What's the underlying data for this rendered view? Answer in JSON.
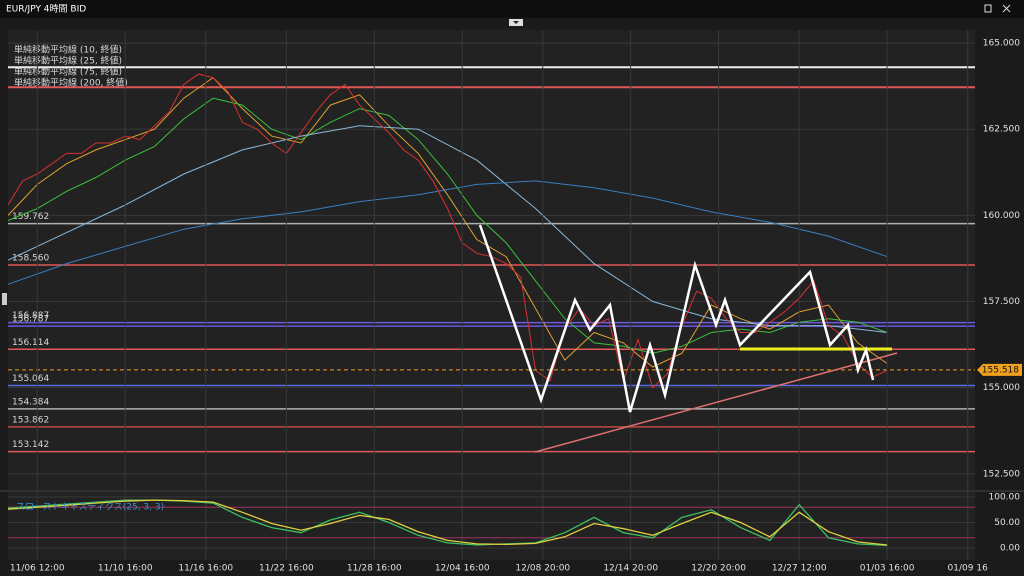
{
  "chart_data": [
    {
      "type": "line",
      "title": "EUR/JPY 4時間 BID",
      "xlim": [
        0,
        132
      ],
      "ylim": [
        152.03,
        165.38
      ],
      "yticks": [
        {
          "value": 152.5,
          "label": "152.500"
        },
        {
          "value": 155,
          "label": "155.000"
        },
        {
          "value": 157.5,
          "label": "157.500"
        },
        {
          "value": 160,
          "label": "160.000"
        },
        {
          "value": 162.5,
          "label": "162.500"
        },
        {
          "value": 165,
          "label": "165.000"
        }
      ],
      "grid": true,
      "series": [
        {
          "name": "単純移動平均線 (10, 終値)",
          "color": "#e0a030",
          "x": [
            0,
            4,
            8,
            12,
            16,
            20,
            24,
            28,
            32,
            36,
            40,
            44,
            48,
            52,
            56,
            60,
            64,
            68,
            72,
            76,
            80,
            84,
            88,
            92,
            96,
            100,
            104,
            108,
            112,
            116,
            120
          ],
          "values": [
            160.0,
            160.9,
            161.5,
            161.9,
            162.2,
            162.5,
            163.4,
            164.0,
            163.1,
            162.3,
            162.1,
            163.2,
            163.5,
            162.6,
            161.8,
            160.6,
            159.3,
            158.8,
            157.3,
            155.8,
            156.6,
            156.3,
            155.6,
            156.0,
            157.4,
            157.0,
            156.7,
            157.2,
            157.4,
            156.3,
            155.7
          ]
        },
        {
          "name": "単純移動平均線 (25, 終値)",
          "color": "#3cc03c",
          "x": [
            0,
            4,
            8,
            12,
            16,
            20,
            24,
            28,
            32,
            36,
            40,
            44,
            48,
            52,
            56,
            60,
            64,
            68,
            72,
            76,
            80,
            84,
            88,
            92,
            96,
            100,
            104,
            108,
            112,
            116,
            120
          ],
          "values": [
            159.85,
            160.2,
            160.7,
            161.1,
            161.6,
            162.0,
            162.8,
            163.4,
            163.2,
            162.5,
            162.2,
            162.7,
            163.1,
            162.9,
            162.2,
            161.2,
            160.0,
            159.2,
            158.1,
            157.0,
            156.3,
            156.2,
            156.0,
            156.2,
            156.6,
            156.7,
            156.6,
            156.9,
            157.0,
            156.9,
            156.6
          ]
        },
        {
          "name": "単純移動平均線 (75, 終値)",
          "color": "#8ab8d8",
          "x": [
            0,
            8,
            16,
            24,
            32,
            40,
            48,
            56,
            64,
            72,
            80,
            88,
            96,
            104,
            112,
            120
          ],
          "values": [
            158.7,
            159.5,
            160.3,
            161.2,
            161.9,
            162.3,
            162.6,
            162.5,
            161.6,
            160.2,
            158.6,
            157.5,
            157.0,
            156.8,
            156.8,
            156.6
          ]
        },
        {
          "name": "単純移動平均線 (200, 終値)",
          "color": "#3a7fc0",
          "x": [
            0,
            8,
            16,
            24,
            32,
            40,
            48,
            56,
            64,
            72,
            80,
            88,
            96,
            104,
            112,
            120
          ],
          "values": [
            158.0,
            158.6,
            159.1,
            159.6,
            159.9,
            160.1,
            160.4,
            160.6,
            160.9,
            161.0,
            160.8,
            160.5,
            160.1,
            159.8,
            159.4,
            158.8
          ]
        },
        {
          "name": "EUR/JPY",
          "color": "#d83030",
          "x": [
            0,
            2,
            4,
            6,
            8,
            10,
            12,
            14,
            16,
            18,
            20,
            22,
            24,
            26,
            28,
            30,
            32,
            34,
            36,
            38,
            40,
            42,
            44,
            46,
            48,
            50,
            52,
            54,
            56,
            58,
            60,
            62,
            64,
            66,
            68,
            70,
            72,
            74,
            76,
            78,
            80,
            82,
            84,
            86,
            88,
            90,
            92,
            94,
            96,
            98,
            100,
            102,
            104,
            106,
            108,
            110,
            112,
            114,
            116,
            118,
            120
          ],
          "values": [
            160.3,
            161.0,
            161.2,
            161.5,
            161.8,
            161.8,
            162.1,
            162.1,
            162.3,
            162.2,
            162.6,
            163.0,
            163.8,
            164.1,
            164.0,
            163.6,
            162.7,
            162.5,
            162.1,
            161.8,
            162.4,
            163.0,
            163.5,
            163.8,
            163.2,
            162.8,
            162.4,
            161.9,
            161.6,
            161.0,
            160.2,
            159.2,
            158.9,
            158.8,
            158.6,
            158.2,
            155.5,
            155.2,
            156.7,
            157.3,
            156.8,
            157.0,
            155.2,
            156.4,
            155.0,
            155.4,
            156.8,
            157.8,
            157.6,
            157.0,
            156.6,
            156.6,
            156.9,
            157.2,
            157.6,
            158.1,
            156.8,
            156.5,
            155.7,
            155.3,
            155.5
          ]
        }
      ],
      "lines": [
        {
          "value": 164.3,
          "color": "#f0f0f0"
        },
        {
          "value": 163.72,
          "color": "#e05858"
        }
      ],
      "levels": [
        {
          "value": 159.762,
          "color": "#b0b0b0"
        },
        {
          "value": 158.56,
          "label": "158.560",
          "color": "#e05858"
        },
        {
          "value": 156.887,
          "color": "#6a5ae0"
        },
        {
          "value": 156.787,
          "color": "#6a5ae0"
        },
        {
          "value": 156.114,
          "color": "#e05858"
        },
        {
          "value": 155.064,
          "color": "#5a6ae0"
        },
        {
          "value": 154.384,
          "color": "#b0b0b0"
        },
        {
          "value": 153.862,
          "color": "#c04848"
        },
        {
          "value": 153.142,
          "color": "#e05858"
        }
      ],
      "current_price": 155.518,
      "current_color": "#f0a020"
    },
    {
      "type": "line",
      "title": "スローストキャスティクス(25, 3, 3)",
      "xlim": [
        0,
        132
      ],
      "ylim": [
        -23.5,
        109.8
      ],
      "yticks": [
        {
          "value": 0,
          "label": "0.00"
        },
        {
          "value": 50,
          "label": "50.00"
        },
        {
          "value": 100,
          "label": "100.00"
        }
      ],
      "xticks": [
        {
          "value": 4,
          "label": "11/06 12:00"
        },
        {
          "value": 16,
          "label": "11/10 16:00"
        },
        {
          "value": 27,
          "label": "11/16 16:00"
        },
        {
          "value": 38,
          "label": "11/22 16:00"
        },
        {
          "value": 50,
          "label": "11/28 16:00"
        },
        {
          "value": 62,
          "label": "12/04 16:00"
        },
        {
          "value": 73,
          "label": "12/08 20:00"
        },
        {
          "value": 85,
          "label": "12/14 20:00"
        },
        {
          "value": 97,
          "label": "12/20 20:00"
        },
        {
          "value": 108,
          "label": "12/27 12:00"
        },
        {
          "value": 120,
          "label": "01/03 16:00"
        },
        {
          "value": 131,
          "label": "01/09 16"
        }
      ],
      "grid": true,
      "series": [
        {
          "color": "#3cc060",
          "x": [
            0,
            4,
            8,
            12,
            16,
            20,
            24,
            28,
            32,
            36,
            40,
            44,
            48,
            52,
            56,
            60,
            64,
            68,
            72,
            76,
            80,
            84,
            88,
            92,
            96,
            100,
            104,
            108,
            112,
            116,
            120
          ],
          "values": [
            78,
            82,
            86,
            90,
            94,
            94,
            92,
            88,
            60,
            40,
            30,
            55,
            70,
            50,
            25,
            10,
            6,
            8,
            10,
            30,
            60,
            30,
            20,
            60,
            75,
            40,
            15,
            85,
            20,
            8,
            5
          ]
        },
        {
          "color": "#e0d040",
          "x": [
            0,
            4,
            8,
            12,
            16,
            20,
            24,
            28,
            32,
            36,
            40,
            44,
            48,
            52,
            56,
            60,
            64,
            68,
            72,
            76,
            80,
            84,
            88,
            92,
            96,
            100,
            104,
            108,
            112,
            116,
            120
          ],
          "values": [
            76,
            80,
            84,
            88,
            92,
            94,
            93,
            90,
            70,
            48,
            35,
            48,
            64,
            56,
            32,
            15,
            8,
            7,
            9,
            22,
            48,
            38,
            25,
            48,
            70,
            50,
            22,
            70,
            32,
            12,
            6
          ]
        }
      ],
      "lines": [
        {
          "value": 80,
          "color": "#a03060"
        },
        {
          "value": 20,
          "color": "#a03060"
        }
      ]
    }
  ]
}
